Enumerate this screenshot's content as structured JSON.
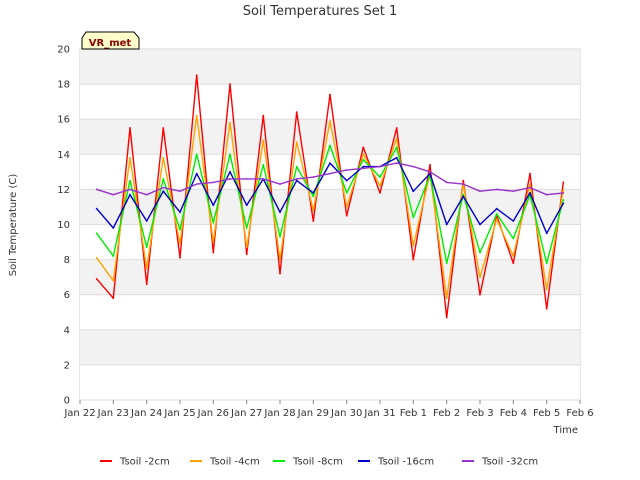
{
  "chart_data": {
    "type": "line",
    "title": "Soil Temperatures Set 1",
    "xlabel": "Time",
    "ylabel": "Soil Temperature (C)",
    "badge": "VR_met",
    "ylim": [
      0,
      20
    ],
    "yticks": [
      "0",
      "2",
      "4",
      "6",
      "8",
      "10",
      "12",
      "14",
      "16",
      "18",
      "20"
    ],
    "xlim": [
      "Jan 22",
      "Feb 6"
    ],
    "xticks": [
      "Jan 22",
      "Jan 23",
      "Jan 24",
      "Jan 25",
      "Jan 26",
      "Jan 27",
      "Jan 28",
      "Jan 29",
      "Jan 30",
      "Jan 31",
      "Feb 1",
      "Feb 2",
      "Feb 3",
      "Feb 4",
      "Feb 5",
      "Feb 6"
    ],
    "grid": true,
    "legend_position": "bottom",
    "x": [
      "Jan 22 12:00",
      "Jan 23 00:00",
      "Jan 23 12:00",
      "Jan 24 00:00",
      "Jan 24 12:00",
      "Jan 25 00:00",
      "Jan 25 12:00",
      "Jan 26 00:00",
      "Jan 26 12:00",
      "Jan 27 00:00",
      "Jan 27 12:00",
      "Jan 28 00:00",
      "Jan 28 12:00",
      "Jan 29 00:00",
      "Jan 29 12:00",
      "Jan 30 00:00",
      "Jan 30 12:00",
      "Jan 31 00:00",
      "Jan 31 12:00",
      "Feb 1 00:00",
      "Feb 1 12:00",
      "Feb 2 00:00",
      "Feb 2 12:00",
      "Feb 3 00:00",
      "Feb 3 12:00",
      "Feb 4 00:00",
      "Feb 4 12:00",
      "Feb 5 00:00",
      "Feb 5 12:00"
    ],
    "series": [
      {
        "name": "Tsoil -2cm",
        "color": "#ff0000",
        "values": [
          6.9,
          5.8,
          15.5,
          6.6,
          15.5,
          8.1,
          18.5,
          8.4,
          18.0,
          8.3,
          16.2,
          7.2,
          16.4,
          10.2,
          17.4,
          10.5,
          14.4,
          11.8,
          15.5,
          8.0,
          13.4,
          4.7,
          12.5,
          6.0,
          10.5,
          7.8,
          12.9,
          5.2,
          12.4
        ]
      },
      {
        "name": "Tsoil -4cm",
        "color": "#ffa500",
        "values": [
          8.1,
          6.8,
          13.8,
          7.5,
          13.8,
          8.9,
          16.2,
          9.0,
          15.8,
          8.7,
          14.8,
          8.0,
          14.7,
          10.8,
          15.9,
          11.0,
          14.0,
          12.2,
          14.9,
          8.8,
          12.9,
          5.8,
          12.3,
          7.0,
          10.3,
          8.2,
          12.3,
          6.3,
          12.0
        ]
      },
      {
        "name": "Tsoil -8cm",
        "color": "#00ee00",
        "values": [
          9.5,
          8.2,
          12.5,
          8.7,
          12.6,
          9.7,
          14.0,
          10.1,
          14.0,
          9.8,
          13.4,
          9.3,
          13.3,
          11.6,
          14.5,
          11.8,
          13.7,
          12.7,
          14.4,
          10.4,
          12.8,
          7.8,
          11.7,
          8.4,
          10.6,
          9.2,
          11.7,
          7.8,
          11.4
        ]
      },
      {
        "name": "Tsoil -16cm",
        "color": "#0000cc",
        "values": [
          10.9,
          9.8,
          11.7,
          10.2,
          11.9,
          10.7,
          12.9,
          11.1,
          13.0,
          11.1,
          12.6,
          10.7,
          12.5,
          11.8,
          13.5,
          12.5,
          13.3,
          13.3,
          13.8,
          11.9,
          12.9,
          10.0,
          11.6,
          10.0,
          10.9,
          10.2,
          11.8,
          9.5,
          11.2
        ]
      },
      {
        "name": "Tsoil -32cm",
        "color": "#9932cc",
        "values": [
          12.0,
          11.7,
          12.0,
          11.7,
          12.1,
          11.9,
          12.3,
          12.4,
          12.6,
          12.6,
          12.6,
          12.3,
          12.6,
          12.7,
          12.9,
          13.1,
          13.2,
          13.3,
          13.5,
          13.3,
          13.0,
          12.4,
          12.3,
          11.9,
          12.0,
          11.9,
          12.1,
          11.7,
          11.8
        ]
      }
    ]
  }
}
